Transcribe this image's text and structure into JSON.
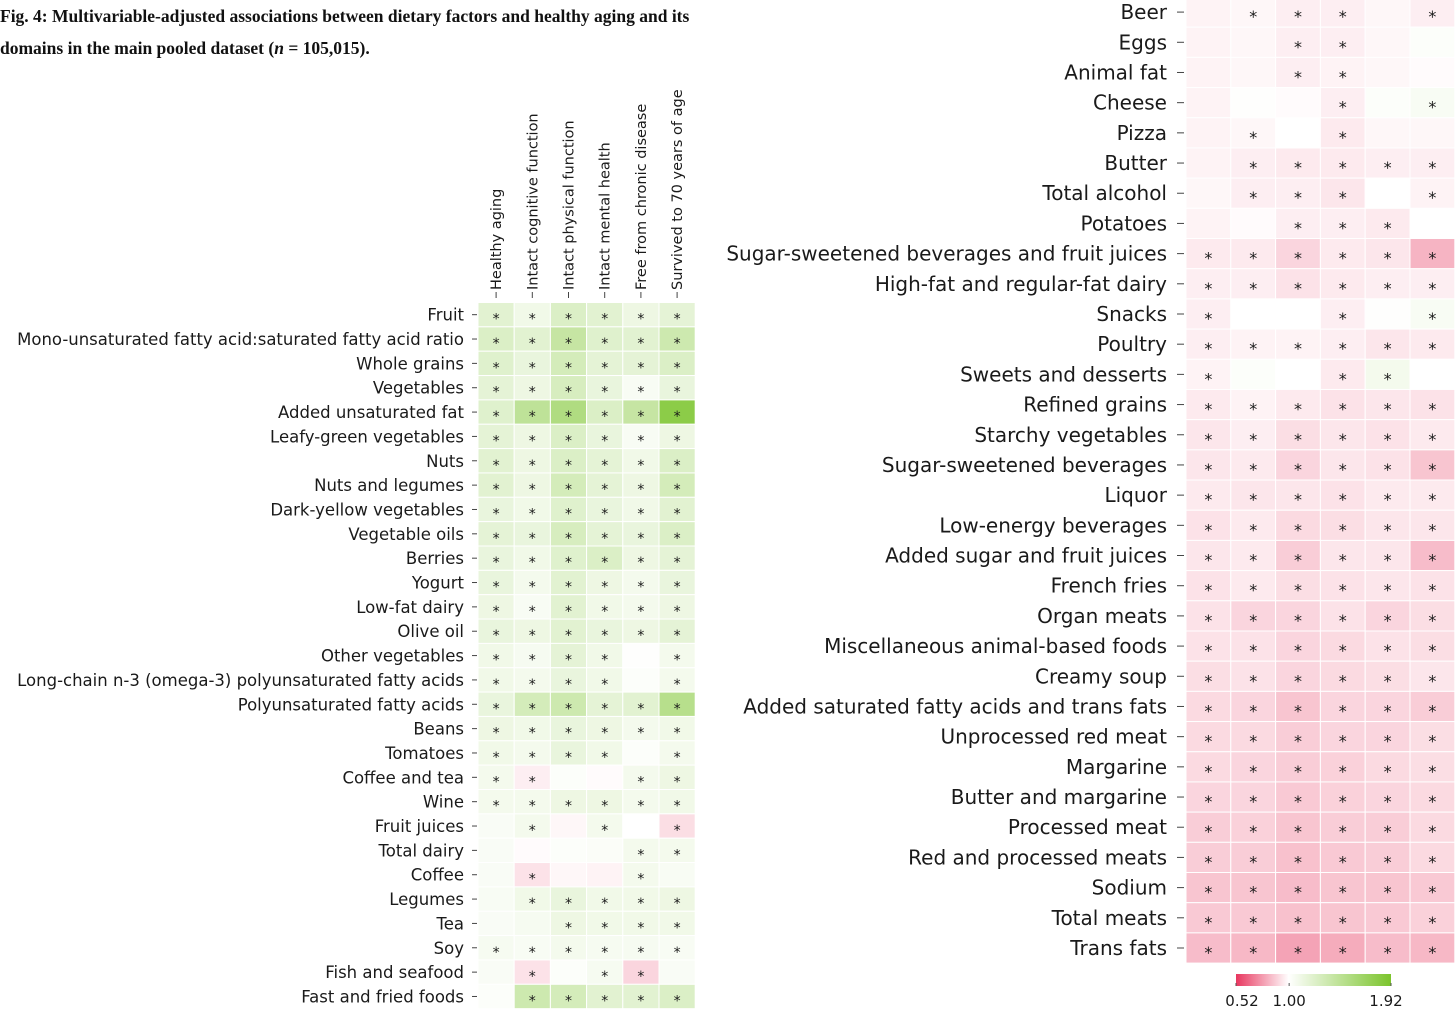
{
  "figure": {
    "label": "Fig. 4:",
    "title_part1": "Multivariable-adjusted associations between dietary factors and healthy aging and its domains in the main pooled dataset (",
    "n_symbol": "n",
    "title_part2": " = 105,015)."
  },
  "chart_data": {
    "type": "heatmap",
    "title": "Multivariable-adjusted associations between dietary factors and healthy aging and its domains in the main pooled dataset (n = 105,015)",
    "measure": "odds ratio per unit intake (color scale 0.52 to 1.92; * = statistically significant)",
    "columns": [
      "Healthy aging",
      "Intact cognitive function",
      "Intact physical function",
      "Intact mental health",
      "Free from chronic disease",
      "Survived to 70 years of age"
    ],
    "color_scale": {
      "min": 0.52,
      "mid": 1.0,
      "max": 1.92,
      "low_color": "#e8375f",
      "mid_color": "#ffffff",
      "high_color": "#7bc42c",
      "tick_labels": [
        "0.52",
        "1.00",
        "1.92"
      ]
    },
    "rows": [
      {
        "label": "Fruit",
        "values": [
          1.2,
          1.1,
          1.25,
          1.2,
          1.12,
          1.18
        ],
        "sig": [
          1,
          1,
          1,
          1,
          1,
          1
        ]
      },
      {
        "label": "Mono-unsaturated fatty acid:saturated fatty acid ratio",
        "values": [
          1.25,
          1.2,
          1.4,
          1.22,
          1.2,
          1.35
        ],
        "sig": [
          1,
          1,
          1,
          1,
          1,
          1
        ]
      },
      {
        "label": "Whole grains",
        "values": [
          1.22,
          1.15,
          1.3,
          1.18,
          1.18,
          1.25
        ],
        "sig": [
          1,
          1,
          1,
          1,
          1,
          1
        ]
      },
      {
        "label": "Vegetables",
        "values": [
          1.18,
          1.12,
          1.28,
          1.15,
          1.05,
          1.15
        ],
        "sig": [
          1,
          1,
          1,
          1,
          1,
          1
        ]
      },
      {
        "label": "Added unsaturated fat",
        "values": [
          1.22,
          1.45,
          1.55,
          1.25,
          1.4,
          1.8
        ],
        "sig": [
          1,
          1,
          1,
          1,
          1,
          1
        ]
      },
      {
        "label": "Leafy-green vegetables",
        "values": [
          1.18,
          1.12,
          1.25,
          1.15,
          1.05,
          1.12
        ],
        "sig": [
          1,
          1,
          1,
          1,
          1,
          1
        ]
      },
      {
        "label": "Nuts",
        "values": [
          1.2,
          1.12,
          1.25,
          1.18,
          1.1,
          1.25
        ],
        "sig": [
          1,
          1,
          1,
          1,
          1,
          1
        ]
      },
      {
        "label": "Nuts and legumes",
        "values": [
          1.2,
          1.12,
          1.3,
          1.18,
          1.12,
          1.3
        ],
        "sig": [
          1,
          1,
          1,
          1,
          1,
          1
        ]
      },
      {
        "label": "Dark-yellow vegetables",
        "values": [
          1.15,
          1.1,
          1.22,
          1.15,
          1.1,
          1.2
        ],
        "sig": [
          1,
          1,
          1,
          1,
          1,
          1
        ]
      },
      {
        "label": "Vegetable oils",
        "values": [
          1.18,
          1.15,
          1.28,
          1.18,
          1.15,
          1.25
        ],
        "sig": [
          1,
          1,
          1,
          1,
          1,
          1
        ]
      },
      {
        "label": "Berries",
        "values": [
          1.15,
          1.1,
          1.22,
          1.25,
          1.12,
          1.18
        ],
        "sig": [
          1,
          1,
          1,
          1,
          1,
          1
        ]
      },
      {
        "label": "Yogurt",
        "values": [
          1.15,
          1.08,
          1.2,
          1.12,
          1.08,
          1.15
        ],
        "sig": [
          1,
          1,
          1,
          1,
          1,
          1
        ]
      },
      {
        "label": "Low-fat dairy",
        "values": [
          1.12,
          1.05,
          1.2,
          1.1,
          1.08,
          1.12
        ],
        "sig": [
          1,
          1,
          1,
          1,
          1,
          1
        ]
      },
      {
        "label": "Olive oil",
        "values": [
          1.15,
          1.12,
          1.2,
          1.15,
          1.12,
          1.18
        ],
        "sig": [
          1,
          1,
          1,
          1,
          1,
          1
        ]
      },
      {
        "label": "Other vegetables",
        "values": [
          1.1,
          1.06,
          1.18,
          1.1,
          1.01,
          1.08
        ],
        "sig": [
          1,
          1,
          1,
          1,
          0,
          1
        ]
      },
      {
        "label": "Long-chain n-3 (omega-3) polyunsaturated fatty acids",
        "values": [
          1.1,
          1.08,
          1.15,
          1.1,
          1.02,
          1.08
        ],
        "sig": [
          1,
          1,
          1,
          1,
          0,
          1
        ]
      },
      {
        "label": "Polyunsaturated fatty acids",
        "values": [
          1.15,
          1.3,
          1.35,
          1.18,
          1.2,
          1.5
        ],
        "sig": [
          1,
          1,
          1,
          1,
          1,
          1
        ]
      },
      {
        "label": "Beans",
        "values": [
          1.12,
          1.1,
          1.15,
          1.12,
          1.08,
          1.1
        ],
        "sig": [
          1,
          1,
          1,
          1,
          1,
          1
        ]
      },
      {
        "label": "Tomatoes",
        "values": [
          1.1,
          1.08,
          1.15,
          1.1,
          1.02,
          1.08
        ],
        "sig": [
          1,
          1,
          1,
          1,
          0,
          1
        ]
      },
      {
        "label": "Coffee and tea",
        "values": [
          1.08,
          0.96,
          1.02,
          0.99,
          1.08,
          1.12
        ],
        "sig": [
          1,
          1,
          0,
          0,
          1,
          1
        ]
      },
      {
        "label": "Wine",
        "values": [
          1.08,
          1.08,
          1.12,
          1.12,
          1.08,
          1.1
        ],
        "sig": [
          1,
          1,
          1,
          1,
          1,
          1
        ]
      },
      {
        "label": "Fruit juices",
        "values": [
          1.04,
          1.08,
          0.98,
          1.08,
          1.0,
          0.92
        ],
        "sig": [
          0,
          1,
          0,
          1,
          0,
          1
        ]
      },
      {
        "label": "Total dairy",
        "values": [
          1.04,
          0.99,
          1.02,
          1.03,
          1.08,
          1.08
        ],
        "sig": [
          0,
          0,
          0,
          0,
          1,
          1
        ]
      },
      {
        "label": "Coffee",
        "values": [
          1.04,
          0.93,
          0.98,
          0.97,
          1.08,
          1.05
        ],
        "sig": [
          0,
          1,
          0,
          0,
          1,
          0
        ]
      },
      {
        "label": "Legumes",
        "values": [
          1.05,
          1.1,
          1.15,
          1.1,
          1.1,
          1.12
        ],
        "sig": [
          0,
          1,
          1,
          1,
          1,
          1
        ]
      },
      {
        "label": "Tea",
        "values": [
          1.04,
          1.06,
          1.12,
          1.1,
          1.1,
          1.1
        ],
        "sig": [
          0,
          0,
          1,
          1,
          1,
          1
        ]
      },
      {
        "label": "Soy",
        "values": [
          1.06,
          1.05,
          1.08,
          1.06,
          1.06,
          1.05
        ],
        "sig": [
          1,
          1,
          1,
          1,
          1,
          1
        ]
      },
      {
        "label": "Fish and seafood",
        "values": [
          1.04,
          0.93,
          1.02,
          1.06,
          0.9,
          1.04
        ],
        "sig": [
          0,
          1,
          0,
          1,
          1,
          0
        ]
      },
      {
        "label": "Fast and fried foods",
        "values": [
          1.02,
          1.35,
          1.3,
          1.2,
          1.2,
          1.25
        ],
        "sig": [
          0,
          1,
          1,
          1,
          1,
          1
        ]
      },
      {
        "label": "Beer",
        "values": [
          0.97,
          0.98,
          0.96,
          0.96,
          0.98,
          0.96
        ],
        "sig": [
          0,
          1,
          1,
          1,
          0,
          1
        ]
      },
      {
        "label": "Eggs",
        "values": [
          0.97,
          0.98,
          0.96,
          0.96,
          0.98,
          1.02
        ],
        "sig": [
          0,
          0,
          1,
          1,
          0,
          0
        ]
      },
      {
        "label": "Animal fat",
        "values": [
          0.97,
          0.98,
          0.96,
          0.97,
          0.98,
          0.99
        ],
        "sig": [
          0,
          0,
          1,
          1,
          0,
          0
        ]
      },
      {
        "label": "Cheese",
        "values": [
          0.97,
          1.01,
          0.99,
          0.96,
          1.02,
          1.05
        ],
        "sig": [
          0,
          0,
          0,
          1,
          0,
          1
        ]
      },
      {
        "label": "Pizza",
        "values": [
          0.97,
          0.98,
          1.0,
          0.95,
          0.98,
          0.98
        ],
        "sig": [
          0,
          1,
          0,
          1,
          0,
          0
        ]
      },
      {
        "label": "Butter",
        "values": [
          0.97,
          0.96,
          0.95,
          0.95,
          0.96,
          0.96
        ],
        "sig": [
          0,
          1,
          1,
          1,
          1,
          1
        ]
      },
      {
        "label": "Total alcohol",
        "values": [
          0.98,
          0.96,
          0.96,
          0.94,
          1.0,
          0.97
        ],
        "sig": [
          0,
          1,
          1,
          1,
          0,
          1
        ]
      },
      {
        "label": "Potatoes",
        "values": [
          0.97,
          0.99,
          0.96,
          0.96,
          0.95,
          1.0
        ],
        "sig": [
          0,
          0,
          1,
          1,
          1,
          0
        ]
      },
      {
        "label": "Sugar-sweetened beverages and fruit juices",
        "values": [
          0.95,
          0.95,
          0.9,
          0.95,
          0.94,
          0.82
        ],
        "sig": [
          1,
          1,
          1,
          1,
          1,
          1
        ]
      },
      {
        "label": "High-fat and regular-fat dairy",
        "values": [
          0.96,
          0.96,
          0.93,
          0.95,
          0.96,
          0.96
        ],
        "sig": [
          1,
          1,
          1,
          1,
          1,
          1
        ]
      },
      {
        "label": "Snacks",
        "values": [
          0.96,
          1.0,
          1.0,
          0.96,
          1.01,
          1.05
        ],
        "sig": [
          1,
          0,
          0,
          1,
          0,
          1
        ]
      },
      {
        "label": "Poultry",
        "values": [
          0.96,
          0.97,
          0.97,
          0.96,
          0.94,
          0.95
        ],
        "sig": [
          1,
          1,
          1,
          1,
          1,
          1
        ]
      },
      {
        "label": "Sweets and desserts",
        "values": [
          0.97,
          1.02,
          1.0,
          0.95,
          1.08,
          1.0
        ],
        "sig": [
          1,
          0,
          0,
          1,
          1,
          0
        ]
      },
      {
        "label": "Refined grains",
        "values": [
          0.95,
          0.97,
          0.95,
          0.93,
          0.94,
          0.93
        ],
        "sig": [
          1,
          1,
          1,
          1,
          1,
          1
        ]
      },
      {
        "label": "Starchy vegetables",
        "values": [
          0.94,
          0.96,
          0.92,
          0.94,
          0.93,
          0.95
        ],
        "sig": [
          1,
          1,
          1,
          1,
          1,
          1
        ]
      },
      {
        "label": "Sugar-sweetened beverages",
        "values": [
          0.94,
          0.95,
          0.9,
          0.94,
          0.93,
          0.86
        ],
        "sig": [
          1,
          1,
          1,
          1,
          1,
          1
        ]
      },
      {
        "label": "Liquor",
        "values": [
          0.95,
          0.94,
          0.94,
          0.93,
          0.95,
          0.95
        ],
        "sig": [
          1,
          1,
          1,
          1,
          1,
          1
        ]
      },
      {
        "label": "Low-energy beverages",
        "values": [
          0.93,
          0.95,
          0.91,
          0.92,
          0.94,
          0.94
        ],
        "sig": [
          1,
          1,
          1,
          1,
          1,
          1
        ]
      },
      {
        "label": "Added sugar and fruit juices",
        "values": [
          0.94,
          0.95,
          0.88,
          0.94,
          0.94,
          0.84
        ],
        "sig": [
          1,
          1,
          1,
          1,
          1,
          1
        ]
      },
      {
        "label": "French fries",
        "values": [
          0.93,
          0.95,
          0.92,
          0.93,
          0.94,
          0.93
        ],
        "sig": [
          1,
          1,
          1,
          1,
          1,
          1
        ]
      },
      {
        "label": "Organ meats",
        "values": [
          0.93,
          0.9,
          0.9,
          0.93,
          0.9,
          0.92
        ],
        "sig": [
          1,
          1,
          1,
          1,
          1,
          1
        ]
      },
      {
        "label": "Miscellaneous animal-based foods",
        "values": [
          0.93,
          0.93,
          0.9,
          0.91,
          0.93,
          0.92
        ],
        "sig": [
          1,
          1,
          1,
          1,
          1,
          1
        ]
      },
      {
        "label": "Creamy soup",
        "values": [
          0.92,
          0.93,
          0.9,
          0.91,
          0.92,
          0.94
        ],
        "sig": [
          1,
          1,
          1,
          1,
          1,
          1
        ]
      },
      {
        "label": "Added saturated fatty acids and trans fats",
        "values": [
          0.91,
          0.9,
          0.86,
          0.9,
          0.9,
          0.88
        ],
        "sig": [
          1,
          1,
          1,
          1,
          1,
          1
        ]
      },
      {
        "label": "Unprocessed red meat",
        "values": [
          0.91,
          0.91,
          0.88,
          0.9,
          0.9,
          0.92
        ],
        "sig": [
          1,
          1,
          1,
          1,
          1,
          1
        ]
      },
      {
        "label": "Margarine",
        "values": [
          0.91,
          0.9,
          0.88,
          0.89,
          0.91,
          0.92
        ],
        "sig": [
          1,
          1,
          1,
          1,
          1,
          1
        ]
      },
      {
        "label": "Butter and margarine",
        "values": [
          0.9,
          0.9,
          0.87,
          0.89,
          0.9,
          0.91
        ],
        "sig": [
          1,
          1,
          1,
          1,
          1,
          1
        ]
      },
      {
        "label": "Processed meat",
        "values": [
          0.88,
          0.89,
          0.86,
          0.88,
          0.88,
          0.91
        ],
        "sig": [
          1,
          1,
          1,
          1,
          1,
          1
        ]
      },
      {
        "label": "Red and processed meats",
        "values": [
          0.88,
          0.88,
          0.85,
          0.87,
          0.88,
          0.91
        ],
        "sig": [
          1,
          1,
          1,
          1,
          1,
          1
        ]
      },
      {
        "label": "Sodium",
        "values": [
          0.86,
          0.86,
          0.84,
          0.86,
          0.86,
          0.87
        ],
        "sig": [
          1,
          1,
          1,
          1,
          1,
          1
        ]
      },
      {
        "label": "Total meats",
        "values": [
          0.87,
          0.87,
          0.85,
          0.86,
          0.87,
          0.89
        ],
        "sig": [
          1,
          1,
          1,
          1,
          1,
          1
        ]
      },
      {
        "label": "Trans fats",
        "values": [
          0.84,
          0.83,
          0.78,
          0.8,
          0.84,
          0.83
        ],
        "sig": [
          1,
          1,
          1,
          1,
          1,
          1
        ]
      }
    ]
  }
}
